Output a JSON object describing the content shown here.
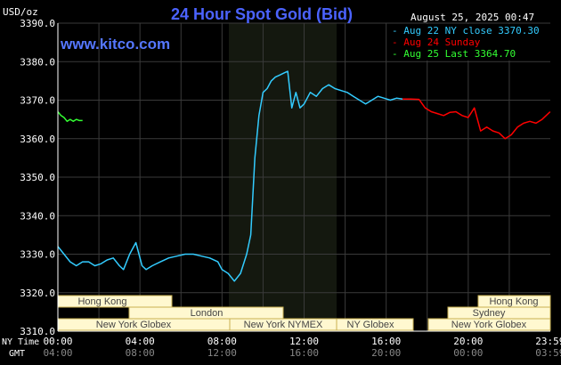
{
  "header": {
    "title": "24 Hour Spot Gold (Bid)",
    "unit": "USD/oz",
    "timestamp": "August 25, 2025 00:47",
    "website": "www.kitco.com"
  },
  "legend": [
    {
      "label": "Aug 22 NY close 3370.30",
      "color": "#33ccff"
    },
    {
      "label": "Aug 24 Sunday",
      "color": "#ff0000"
    },
    {
      "label": "Aug 25 Last 3364.70",
      "color": "#33ff33"
    }
  ],
  "axis": {
    "x_row1_label": "NY Time",
    "x_row2_label": "GMT"
  },
  "sessions": {
    "left": [
      "Hong Kong",
      "London",
      "New York Globex",
      "New York NYMEX",
      "NY Globex"
    ],
    "right": [
      "Hong Kong",
      "Sydney",
      "New York Globex"
    ]
  },
  "chart_data": {
    "type": "line",
    "title": "24 Hour Spot Gold (Bid)",
    "ylabel": "USD/oz",
    "ylim": [
      3310,
      3390
    ],
    "x_ticks_ny": [
      "00:00",
      "04:00",
      "08:00",
      "12:00",
      "16:00",
      "20:00",
      "23:59"
    ],
    "x_ticks_gmt": [
      "04:00",
      "08:00",
      "12:00",
      "16:00",
      "20:00",
      "00:00",
      "03:59"
    ],
    "y_ticks": [
      "3390.0",
      "3380.0",
      "3370.0",
      "3360.0",
      "3350.0",
      "3340.0",
      "3330.0",
      "3320.0",
      "3310.0"
    ],
    "series": [
      {
        "name": "Aug 22 NY close 3370.30",
        "color": "#33ccff",
        "x_hours": [
          0,
          0.3,
          0.6,
          0.9,
          1.2,
          1.5,
          1.8,
          2.1,
          2.4,
          2.7,
          3.0,
          3.2,
          3.5,
          3.8,
          4.1,
          4.3,
          4.6,
          5.0,
          5.4,
          5.8,
          6.2,
          6.6,
          7.0,
          7.4,
          7.8,
          8.0,
          8.3,
          8.6,
          8.9,
          9.2,
          9.4,
          9.6,
          9.8,
          10.0,
          10.2,
          10.4,
          10.6,
          10.8,
          11.0,
          11.2,
          11.4,
          11.6,
          11.8,
          12.0,
          12.3,
          12.6,
          12.9,
          13.2,
          13.5,
          13.8,
          14.1,
          14.4,
          14.7,
          15.0,
          15.3,
          15.6,
          15.9,
          16.2,
          16.5,
          16.8
        ],
        "values": [
          3332,
          3330,
          3328,
          3327,
          3328,
          3328,
          3327,
          3327.5,
          3328.5,
          3329,
          3327,
          3326,
          3330,
          3333,
          3327,
          3326,
          3327,
          3328,
          3329,
          3329.5,
          3330,
          3330,
          3329.5,
          3329,
          3328,
          3326,
          3325,
          3323,
          3325,
          3330,
          3335,
          3355,
          3366,
          3372,
          3373,
          3375,
          3376,
          3376.5,
          3377,
          3377.5,
          3368,
          3372,
          3368,
          3369,
          3372,
          3371,
          3373,
          3374,
          3373,
          3372.5,
          3372,
          3371,
          3370,
          3369,
          3370,
          3371,
          3370.5,
          3370,
          3370.5,
          3370.3
        ]
      },
      {
        "name": "Aug 24 Sunday",
        "color": "#ff0000",
        "x_hours": [
          16.8,
          17.2,
          17.6,
          17.9,
          18.2,
          18.5,
          18.8,
          19.1,
          19.4,
          19.7,
          20.0,
          20.3,
          20.6,
          20.9,
          21.2,
          21.5,
          21.8,
          22.1,
          22.4,
          22.7,
          23.0,
          23.3,
          23.6,
          23.99
        ],
        "values": [
          3370.3,
          3370.3,
          3370.2,
          3368,
          3367,
          3366.5,
          3366,
          3366.8,
          3367,
          3366,
          3365.5,
          3368,
          3362,
          3363,
          3362,
          3361.5,
          3360,
          3361,
          3363,
          3364,
          3364.5,
          3364,
          3365,
          3367
        ]
      },
      {
        "name": "Aug 25 Last 3364.70",
        "color": "#33ff33",
        "x_hours": [
          0,
          0.15,
          0.3,
          0.45,
          0.6,
          0.75,
          0.9,
          1.05,
          1.2
        ],
        "values": [
          3367,
          3366,
          3365.5,
          3364.5,
          3365,
          3364.5,
          3365,
          3364.7,
          3364.7
        ]
      }
    ]
  }
}
